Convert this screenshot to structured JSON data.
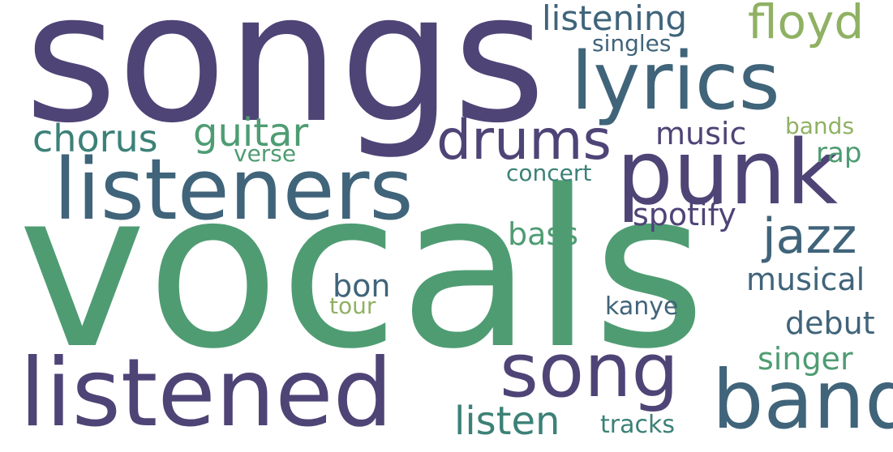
{
  "palette": {
    "background": "#ffffff",
    "dark_purple": "#4f4476",
    "slate_teal": "#40647a",
    "teal": "#3c8177",
    "green": "#4f9c73",
    "olive_green": "#8fb163"
  },
  "words": {
    "vocals": {
      "text": "vocals",
      "color": "#4f9c73"
    },
    "songs": {
      "text": "songs",
      "color": "#4f4476"
    },
    "listeners": {
      "text": "listeners",
      "color": "#40647a"
    },
    "listened": {
      "text": "listened",
      "color": "#4f4476"
    },
    "lyrics": {
      "text": "lyrics",
      "color": "#40647a"
    },
    "punk": {
      "text": "punk",
      "color": "#4f4476"
    },
    "band": {
      "text": "band",
      "color": "#40647a"
    },
    "song": {
      "text": "song",
      "color": "#4f4476"
    },
    "drums": {
      "text": "drums",
      "color": "#4f4476"
    },
    "jazz": {
      "text": "jazz",
      "color": "#40647a"
    },
    "floyd": {
      "text": "floyd",
      "color": "#8fb163"
    },
    "guitar": {
      "text": "guitar",
      "color": "#4f9c73"
    },
    "chorus": {
      "text": "chorus",
      "color": "#3c8177"
    },
    "listening": {
      "text": "listening",
      "color": "#40647a"
    },
    "listen": {
      "text": "listen",
      "color": "#3c8177"
    },
    "spotify": {
      "text": "spotify",
      "color": "#4f4476"
    },
    "music": {
      "text": "music",
      "color": "#4f4476"
    },
    "musical": {
      "text": "musical",
      "color": "#40647a"
    },
    "debut": {
      "text": "debut",
      "color": "#40647a"
    },
    "singer": {
      "text": "singer",
      "color": "#4f9c73"
    },
    "bass": {
      "text": "bass",
      "color": "#4f9c73"
    },
    "bon": {
      "text": "bon",
      "color": "#40647a"
    },
    "rap": {
      "text": "rap",
      "color": "#4f9c73"
    },
    "concert": {
      "text": "concert",
      "color": "#3c8177"
    },
    "verse": {
      "text": "verse",
      "color": "#4f9c73"
    },
    "singles": {
      "text": "singles",
      "color": "#40647a"
    },
    "bands": {
      "text": "bands",
      "color": "#8fb163"
    },
    "tracks": {
      "text": "tracks",
      "color": "#3c8177"
    },
    "kanye": {
      "text": "kanye",
      "color": "#40647a"
    },
    "tour": {
      "text": "tour",
      "color": "#8fb163"
    }
  }
}
